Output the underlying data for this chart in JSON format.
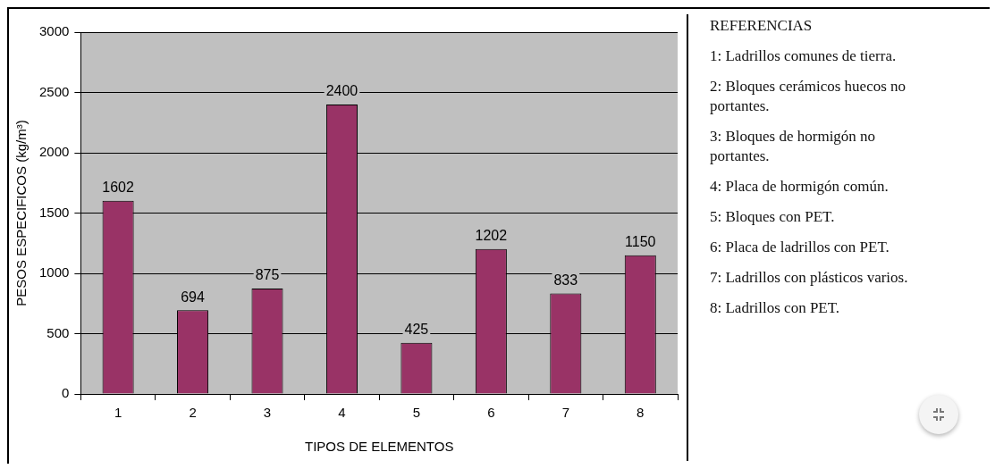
{
  "chart_data": {
    "type": "bar",
    "xlabel": "TIPOS DE ELEMENTOS",
    "ylabel": "PESOS ESPECIFICOS (kg/m³)",
    "categories": [
      "1",
      "2",
      "3",
      "4",
      "5",
      "6",
      "7",
      "8"
    ],
    "values": [
      1602,
      694,
      875,
      2400,
      425,
      1202,
      833,
      1150
    ],
    "color": "#993366",
    "ylim": [
      0,
      3000
    ],
    "yticks": [
      0,
      500,
      1000,
      1500,
      2000,
      2500,
      3000
    ],
    "grid": "y",
    "data_labels": true,
    "legend": false,
    "annotations": [
      "REFERENCIAS",
      "1: Ladrillos comunes de tierra.",
      "2: Bloques cerámicos huecos no portantes.",
      "3: Bloques de hormigón no portantes.",
      "4: Placa de hormigón común.",
      "5: Bloques con PET.",
      "6: Placa de ladrillos con PET.",
      "7: Ladrillos con plásticos varios.",
      "8: Ladrillos con PET."
    ]
  }
}
